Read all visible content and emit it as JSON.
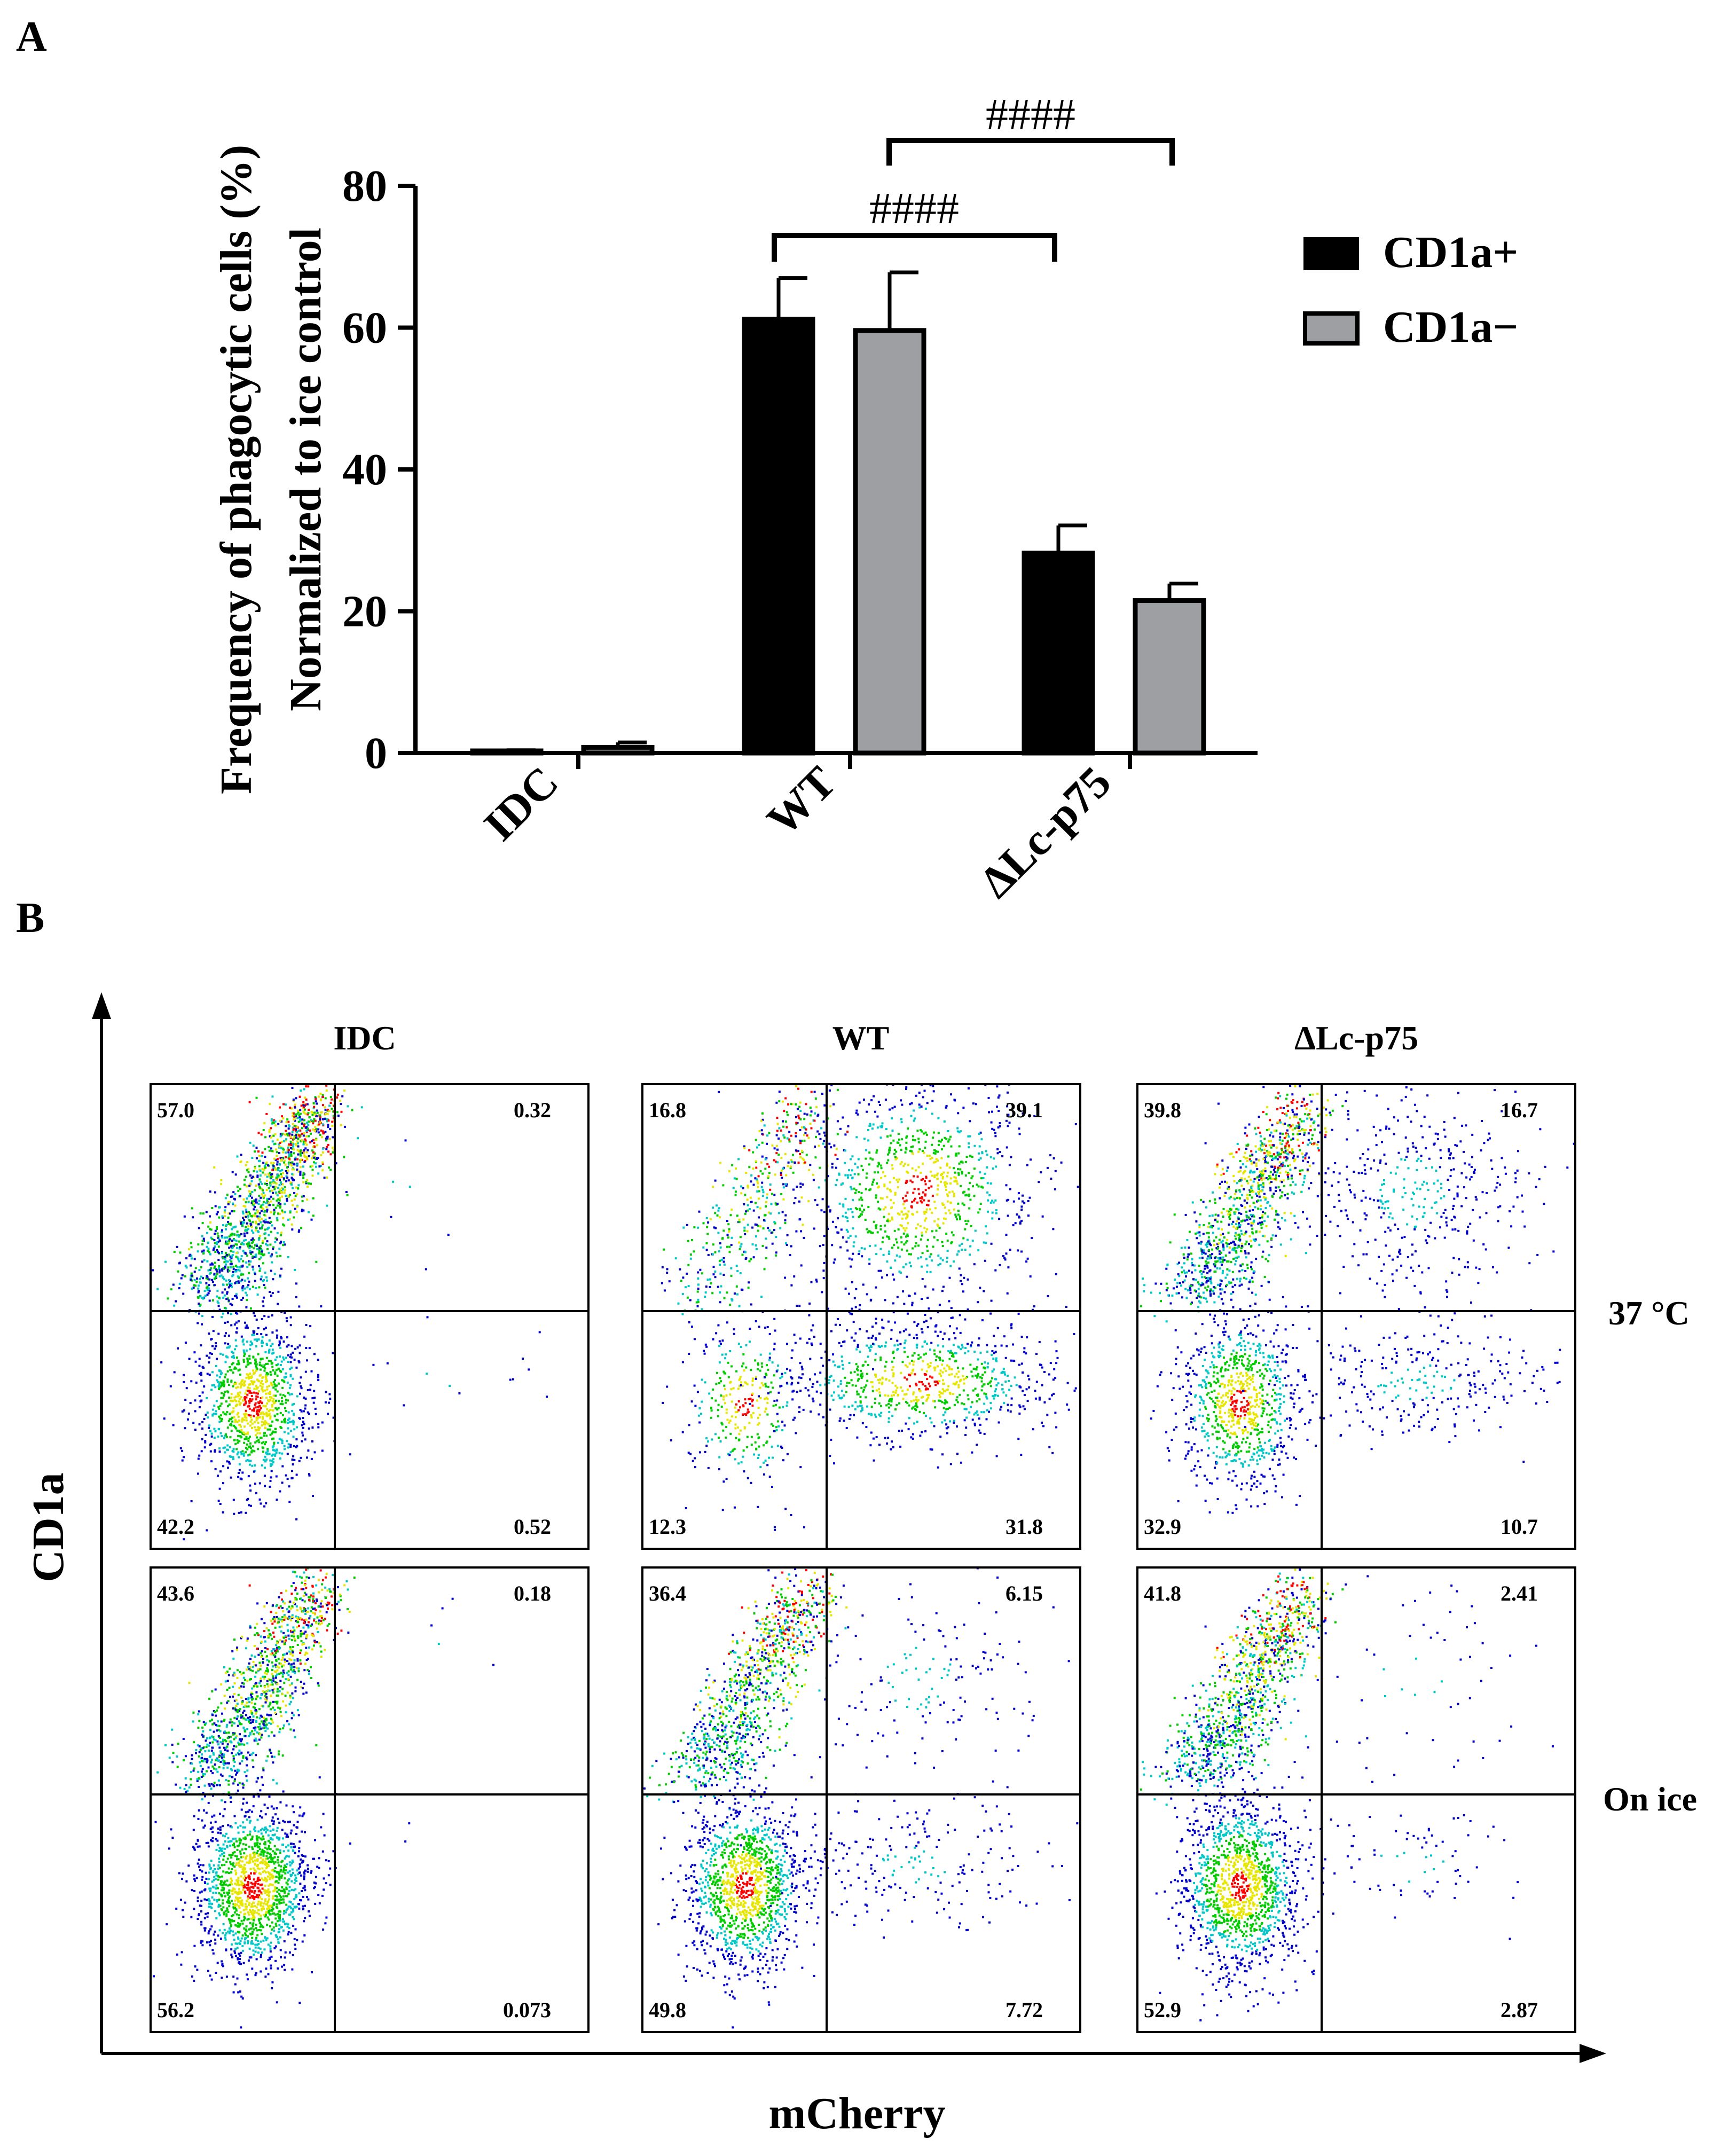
{
  "panel_labels": {
    "a": "A",
    "b": "B"
  },
  "chart_data": [
    {
      "type": "bar",
      "panel": "A",
      "title": "",
      "ylabel_line1": "Frequency of phagocytic cells (%)",
      "ylabel_line2": "Normalized to ice control",
      "xlabel": "",
      "categories": [
        "IDC",
        "WT",
        "ΔLc-p75"
      ],
      "ylim": [
        0,
        80
      ],
      "yticks": [
        "0",
        "20",
        "40",
        "60",
        "80"
      ],
      "series": [
        {
          "name": "CD1a+",
          "color": "#000000",
          "values": [
            0.3,
            61.2,
            28.2
          ],
          "errors": [
            0.1,
            5.8,
            3.9
          ]
        },
        {
          "name": "CD1a−",
          "color": "#9d9fa2",
          "values": [
            0.8,
            59.6,
            21.5
          ],
          "errors": [
            0.7,
            8.2,
            2.4
          ]
        }
      ],
      "legend_position": "top-right",
      "significance": [
        {
          "label": "####",
          "from": "WT CD1a+",
          "to": "ΔLc-p75 CD1a+"
        },
        {
          "label": "####",
          "from": "WT CD1a−",
          "to": "ΔLc-p75 CD1a−"
        }
      ]
    },
    {
      "type": "scatter",
      "panel": "B",
      "xlabel": "mCherry",
      "ylabel": "CD1a",
      "columns": [
        "IDC",
        "WT",
        "ΔLc-p75"
      ],
      "rows": [
        "37 °C",
        "On ice"
      ],
      "plots": [
        {
          "row": 0,
          "col": 0,
          "quadrants": {
            "ul": "57.0",
            "ur": "0.32",
            "ll": "42.2",
            "lr": "0.52"
          }
        },
        {
          "row": 0,
          "col": 1,
          "quadrants": {
            "ul": "16.8",
            "ur": "39.1",
            "ll": "12.3",
            "lr": "31.8"
          }
        },
        {
          "row": 0,
          "col": 2,
          "quadrants": {
            "ul": "39.8",
            "ur": "16.7",
            "ll": "32.9",
            "lr": "10.7"
          }
        },
        {
          "row": 1,
          "col": 0,
          "quadrants": {
            "ul": "43.6",
            "ur": "0.18",
            "ll": "56.2",
            "lr": "0.073"
          }
        },
        {
          "row": 1,
          "col": 1,
          "quadrants": {
            "ul": "36.4",
            "ur": "6.15",
            "ll": "49.8",
            "lr": "7.72"
          }
        },
        {
          "row": 1,
          "col": 2,
          "quadrants": {
            "ul": "41.8",
            "ur": "2.41",
            "ll": "52.9",
            "lr": "2.87"
          }
        }
      ],
      "density_colors": [
        "#0000cc",
        "#00c8c8",
        "#00cc00",
        "#e6e600",
        "#ff0000"
      ]
    }
  ]
}
